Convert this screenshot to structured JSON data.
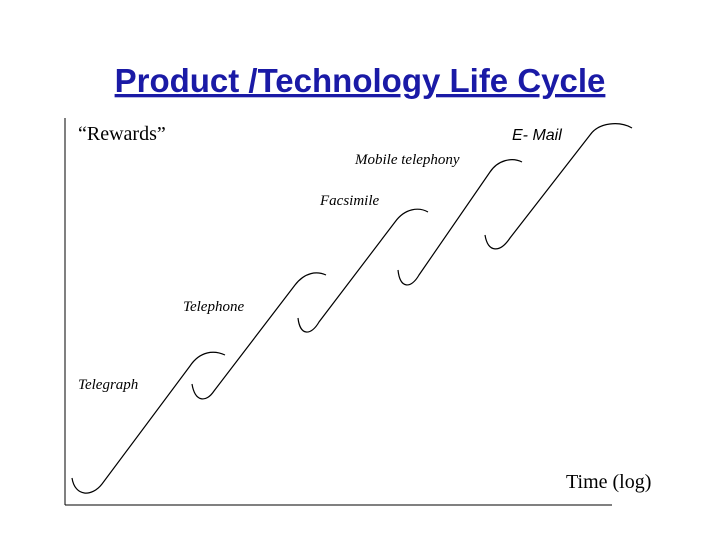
{
  "title": "Product /Technology Life Cycle",
  "y_axis_label": "“Rewards”",
  "x_axis_label": "Time (log)",
  "curves": [
    {
      "label": "Telegraph"
    },
    {
      "label": "Telephone"
    },
    {
      "label": "Facsimile"
    },
    {
      "label": "Mobile telephony"
    },
    {
      "label": "E- Mail"
    }
  ]
}
